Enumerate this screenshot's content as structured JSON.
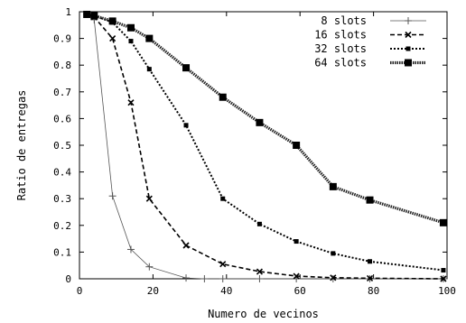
{
  "chart_data": {
    "type": "line",
    "xlabel": "Numero de vecinos",
    "ylabel": "Ratio de entregas",
    "xlim": [
      0,
      100
    ],
    "ylim": [
      0,
      1
    ],
    "xticks": [
      0,
      20,
      40,
      60,
      80,
      100
    ],
    "yticks": [
      0,
      0.1,
      0.2,
      0.3,
      0.4,
      0.5,
      0.6,
      0.7,
      0.8,
      0.9,
      1
    ],
    "grid": false,
    "legend_position": "top-right",
    "series": [
      {
        "name": "8 slots",
        "marker": "plus",
        "line": "solid-thin",
        "x": [
          2,
          4,
          9,
          14,
          19,
          29,
          34,
          39,
          49,
          59,
          69,
          79,
          99
        ],
        "y": [
          0.99,
          0.97,
          0.31,
          0.11,
          0.045,
          0.003,
          0.0,
          0.0,
          0.0,
          0.0,
          0.0,
          0.0,
          0.0
        ]
      },
      {
        "name": "16 slots",
        "marker": "x",
        "line": "dashed",
        "x": [
          2,
          4,
          9,
          14,
          19,
          29,
          39,
          49,
          59,
          69,
          79,
          99
        ],
        "y": [
          0.99,
          0.98,
          0.9,
          0.66,
          0.3,
          0.125,
          0.055,
          0.027,
          0.01,
          0.004,
          0.002,
          0.0
        ]
      },
      {
        "name": "32 slots",
        "marker": "small-square",
        "line": "dotted",
        "x": [
          2,
          4,
          9,
          14,
          19,
          29,
          39,
          49,
          59,
          69,
          79,
          99
        ],
        "y": [
          0.99,
          0.985,
          0.96,
          0.89,
          0.785,
          0.575,
          0.3,
          0.205,
          0.14,
          0.095,
          0.065,
          0.032
        ]
      },
      {
        "name": "64 slots",
        "marker": "square",
        "line": "thick-dotted",
        "x": [
          2,
          4,
          9,
          14,
          19,
          29,
          39,
          49,
          59,
          69,
          79,
          99
        ],
        "y": [
          0.99,
          0.985,
          0.965,
          0.94,
          0.9,
          0.79,
          0.68,
          0.585,
          0.5,
          0.345,
          0.295,
          0.21
        ]
      }
    ]
  }
}
